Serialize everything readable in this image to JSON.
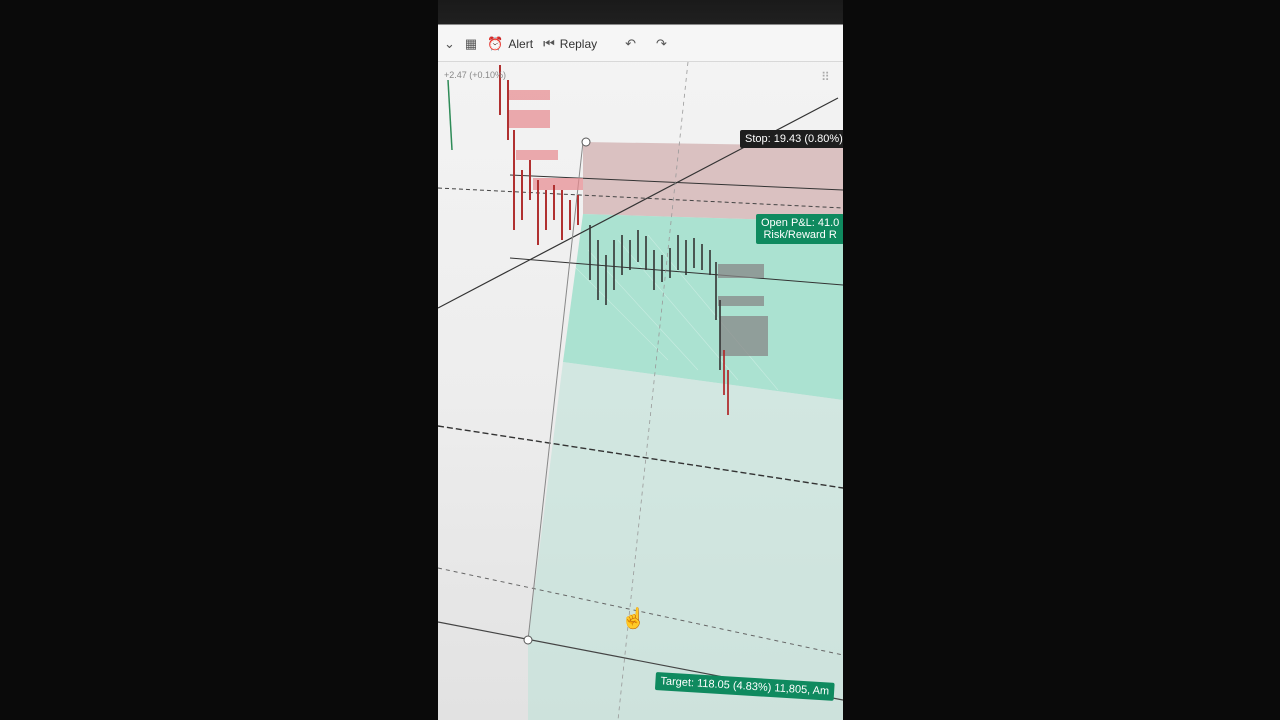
{
  "toolbar": {
    "alert_label": "Alert",
    "replay_label": "Replay",
    "icons": [
      "layout-icon",
      "alert-icon",
      "replay-icon",
      "undo-icon",
      "redo-icon"
    ]
  },
  "chart": {
    "price_change": "+2.47 (+0.10%)",
    "stop_label": "Stop: 19.43 (0.80%)",
    "pnl_label": "Open P&L: 41.0",
    "risk_reward_label": "Risk/Reward R",
    "target_label": "Target: 118.05 (4.83%) 11,805, Am"
  },
  "colors": {
    "profit_zone": "#9fe0cc",
    "stop_zone": "#d8b8b8",
    "candle_down": "#c0392b",
    "candle_up": "#333333",
    "label_green": "#0f8a5f",
    "label_dark": "#1e1e1e"
  }
}
